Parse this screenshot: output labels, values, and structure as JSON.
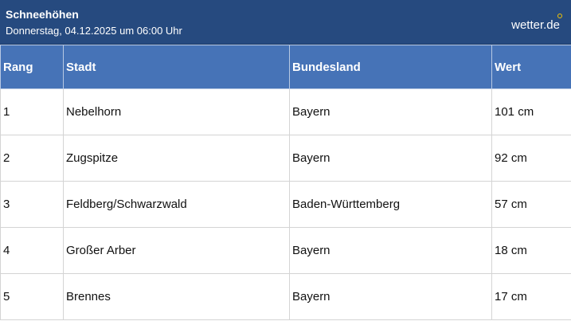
{
  "header": {
    "title": "Schneehöhen",
    "subtitle": "Donnerstag, 04.12.2025 um 06:00 Uhr",
    "logo": "wetter.de",
    "logo_dot_color": "#f4c400"
  },
  "table": {
    "columns": [
      "Rang",
      "Stadt",
      "Bundesland",
      "Wert"
    ],
    "rows": [
      [
        "1",
        "Nebelhorn",
        "Bayern",
        "101 cm"
      ],
      [
        "2",
        "Zugspitze",
        "Bayern",
        "92 cm"
      ],
      [
        "3",
        "Feldberg/Schwarzwald",
        "Baden-Württemberg",
        "57 cm"
      ],
      [
        "4",
        "Großer Arber",
        "Bayern",
        "18 cm"
      ],
      [
        "5",
        "Brennes",
        "Bayern",
        "17 cm"
      ]
    ]
  }
}
